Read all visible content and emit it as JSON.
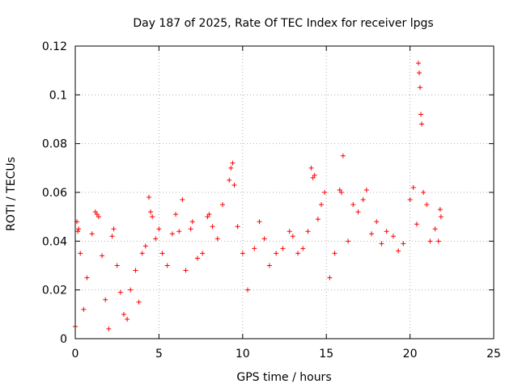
{
  "chart_data": {
    "type": "scatter",
    "title": "Day 187 of 2025, Rate Of TEC Index for receiver lpgs",
    "xlabel": "GPS time / hours",
    "ylabel": "ROTI / TECUs",
    "xlim": [
      0,
      25
    ],
    "ylim": [
      0,
      0.12
    ],
    "xticks": [
      0,
      5,
      10,
      15,
      20,
      25
    ],
    "yticks": [
      0,
      0.02,
      0.04,
      0.06,
      0.08,
      0.1,
      0.12
    ],
    "ytick_labels": [
      "0",
      "0.02",
      "0.04",
      "0.06",
      "0.08",
      "0.1",
      "0.12"
    ],
    "grid": true,
    "marker": "+",
    "color": "#ff0000",
    "series": [
      {
        "points": [
          [
            0.0,
            0.005
          ],
          [
            0.1,
            0.048
          ],
          [
            0.15,
            0.044
          ],
          [
            0.2,
            0.045
          ],
          [
            0.3,
            0.035
          ],
          [
            0.5,
            0.012
          ],
          [
            0.7,
            0.025
          ],
          [
            1.0,
            0.043
          ],
          [
            1.2,
            0.052
          ],
          [
            1.3,
            0.051
          ],
          [
            1.4,
            0.05
          ],
          [
            1.6,
            0.034
          ],
          [
            1.8,
            0.016
          ],
          [
            2.0,
            0.004
          ],
          [
            2.2,
            0.042
          ],
          [
            2.3,
            0.045
          ],
          [
            2.5,
            0.03
          ],
          [
            2.7,
            0.019
          ],
          [
            2.9,
            0.01
          ],
          [
            3.1,
            0.008
          ],
          [
            3.3,
            0.02
          ],
          [
            3.6,
            0.028
          ],
          [
            3.8,
            0.015
          ],
          [
            4.0,
            0.035
          ],
          [
            4.2,
            0.038
          ],
          [
            4.4,
            0.058
          ],
          [
            4.5,
            0.052
          ],
          [
            4.6,
            0.05
          ],
          [
            4.8,
            0.041
          ],
          [
            5.0,
            0.045
          ],
          [
            5.2,
            0.035
          ],
          [
            5.5,
            0.03
          ],
          [
            5.8,
            0.043
          ],
          [
            6.0,
            0.051
          ],
          [
            6.2,
            0.044
          ],
          [
            6.4,
            0.057
          ],
          [
            6.6,
            0.028
          ],
          [
            6.9,
            0.045
          ],
          [
            7.0,
            0.048
          ],
          [
            7.3,
            0.033
          ],
          [
            7.6,
            0.035
          ],
          [
            7.9,
            0.05
          ],
          [
            8.0,
            0.051
          ],
          [
            8.2,
            0.046
          ],
          [
            8.5,
            0.041
          ],
          [
            8.8,
            0.055
          ],
          [
            9.2,
            0.065
          ],
          [
            9.3,
            0.07
          ],
          [
            9.4,
            0.072
          ],
          [
            9.5,
            0.063
          ],
          [
            9.7,
            0.046
          ],
          [
            10.0,
            0.035
          ],
          [
            10.3,
            0.02
          ],
          [
            10.7,
            0.037
          ],
          [
            11.0,
            0.048
          ],
          [
            11.3,
            0.041
          ],
          [
            11.6,
            0.03
          ],
          [
            12.0,
            0.035
          ],
          [
            12.4,
            0.037
          ],
          [
            12.8,
            0.044
          ],
          [
            13.0,
            0.042
          ],
          [
            13.3,
            0.035
          ],
          [
            13.6,
            0.037
          ],
          [
            13.9,
            0.044
          ],
          [
            14.1,
            0.07
          ],
          [
            14.2,
            0.066
          ],
          [
            14.3,
            0.067
          ],
          [
            14.5,
            0.049
          ],
          [
            14.7,
            0.055
          ],
          [
            14.9,
            0.06
          ],
          [
            15.2,
            0.025
          ],
          [
            15.5,
            0.035
          ],
          [
            15.8,
            0.061
          ],
          [
            15.9,
            0.06
          ],
          [
            16.0,
            0.075
          ],
          [
            16.3,
            0.04
          ],
          [
            16.6,
            0.055
          ],
          [
            16.9,
            0.052
          ],
          [
            17.2,
            0.057
          ],
          [
            17.4,
            0.061
          ],
          [
            17.7,
            0.043
          ],
          [
            18.0,
            0.048
          ],
          [
            18.3,
            0.039
          ],
          [
            18.6,
            0.044
          ],
          [
            19.0,
            0.042
          ],
          [
            19.3,
            0.036
          ],
          [
            19.6,
            0.039
          ],
          [
            20.0,
            0.057
          ],
          [
            20.2,
            0.062
          ],
          [
            20.4,
            0.047
          ],
          [
            20.5,
            0.113
          ],
          [
            20.55,
            0.109
          ],
          [
            20.6,
            0.103
          ],
          [
            20.65,
            0.092
          ],
          [
            20.7,
            0.088
          ],
          [
            20.8,
            0.06
          ],
          [
            21.0,
            0.055
          ],
          [
            21.2,
            0.04
          ],
          [
            21.5,
            0.045
          ],
          [
            21.7,
            0.04
          ],
          [
            21.8,
            0.053
          ],
          [
            21.85,
            0.05
          ]
        ]
      }
    ]
  }
}
